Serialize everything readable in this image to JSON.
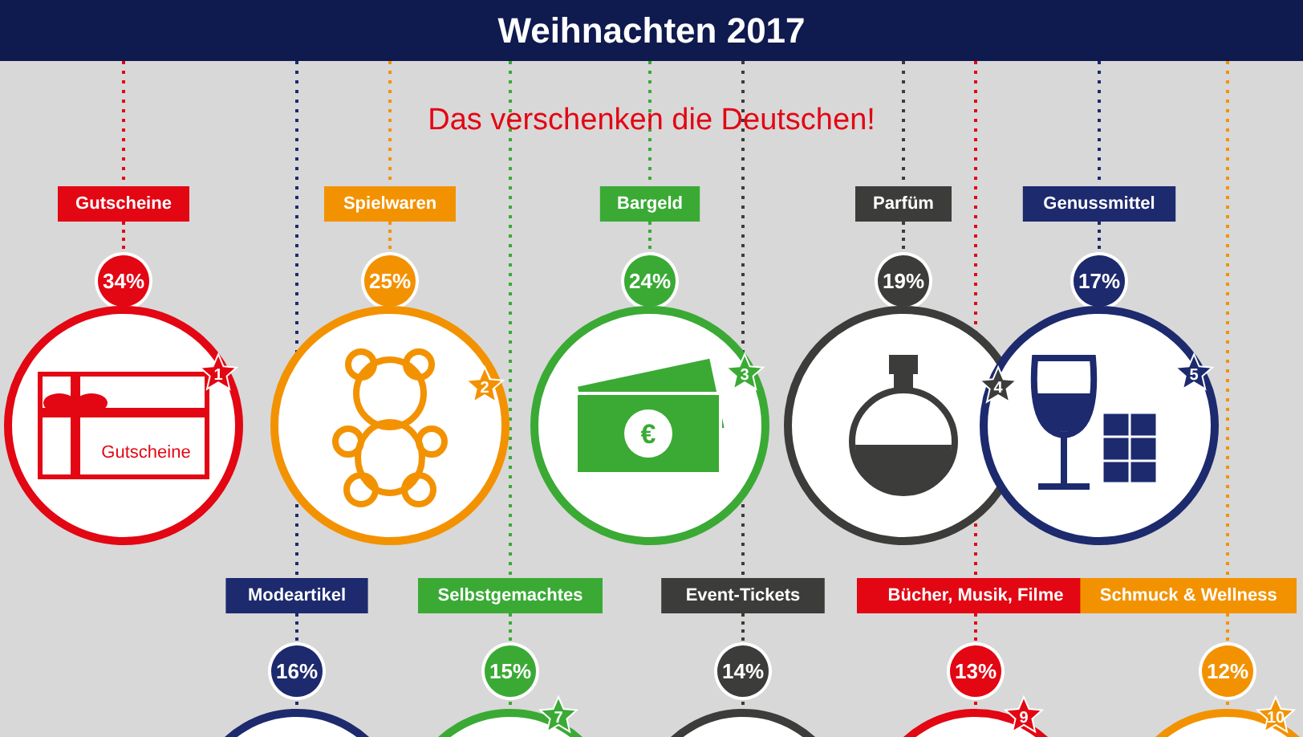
{
  "chart_data": {
    "type": "other",
    "title": "Weihnachten 2017",
    "subtitle": "Das verschenken die Deutschen!",
    "categories": [
      "Gutscheine",
      "Spielwaren",
      "Bargeld",
      "Parfüm",
      "Genussmittel",
      "Modeartikel",
      "Selbstgemachtes",
      "Event-Tickets",
      "Bücher, Musik, Filme",
      "Schmuck & Wellness"
    ],
    "values": [
      34,
      25,
      24,
      19,
      17,
      16,
      15,
      14,
      13,
      12
    ],
    "value_labels": [
      "34%",
      "25%",
      "24%",
      "19%",
      "17%",
      "16%",
      "15%",
      "14%",
      "13%",
      "12%"
    ],
    "colors": [
      "#e30613",
      "#f39200",
      "#3aaa35",
      "#3c3c3b",
      "#1d2a6e",
      "#1d2a6e",
      "#3aaa35",
      "#3c3c3b",
      "#e30613",
      "#f39200"
    ],
    "annotations": [
      {
        "text": "1",
        "x": "Gutscheine"
      },
      {
        "text": "2",
        "x": "Spielwaren"
      },
      {
        "text": "3",
        "x": "Bargeld"
      },
      {
        "text": "4",
        "x": "Parfüm"
      },
      {
        "text": "5",
        "x": "Genussmittel"
      },
      {
        "text": "7",
        "x": "Selbstgemachtes"
      },
      {
        "text": "9",
        "x": "Bücher, Musik, Filme"
      },
      {
        "text": "10",
        "x": "Schmuck & Wellness"
      },
      {
        "text": "Gutscheine",
        "x": "Gutscheine"
      },
      {
        "text": "€",
        "x": "Bargeld"
      }
    ]
  }
}
